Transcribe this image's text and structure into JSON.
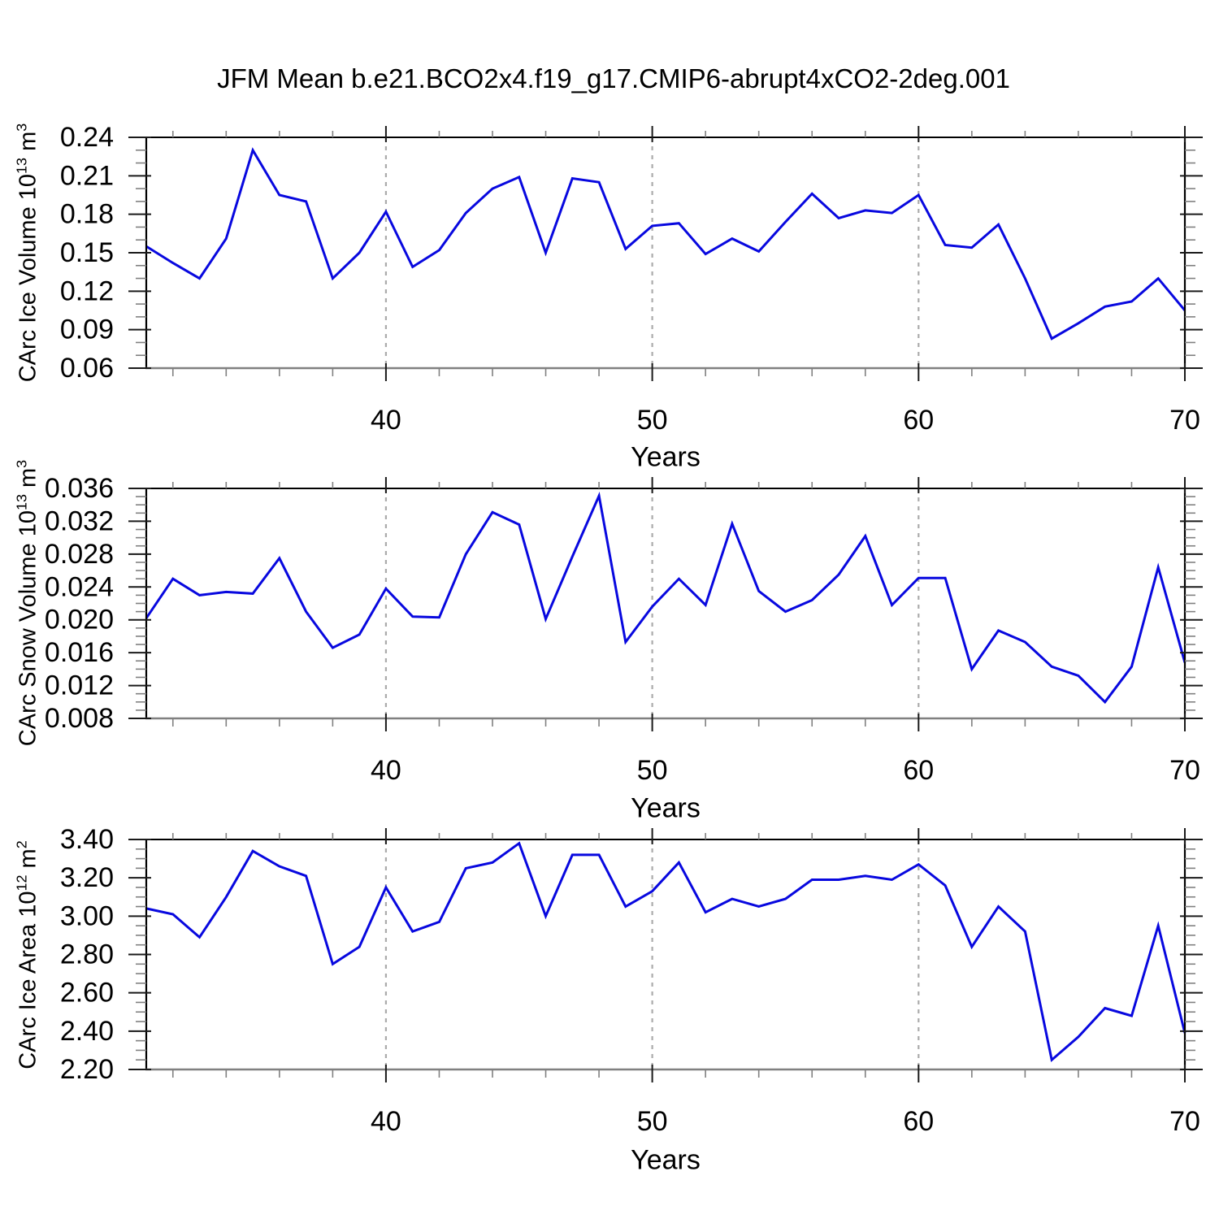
{
  "title": "JFM Mean b.e21.BCO2x4.f19_g17.CMIP6-abrupt4xCO2-2deg.001",
  "style": {
    "line_color": "#0808df",
    "grid_color": "#ababab",
    "frame_color": "#000000",
    "bottom_axis_color": "#808080",
    "major_tick_color": "#1a1a1a",
    "minor_tick_color": "#808080"
  },
  "chart_data": [
    {
      "type": "line",
      "ylabel": "CArc Ice Volume 10^13 m^3",
      "ylabel_parts": {
        "prefix": "CArc Ice Volume 10",
        "exp": "13",
        "unit": " m",
        "unit_exp": "3"
      },
      "xlabel": "Years",
      "xlim": [
        31,
        70
      ],
      "ylim": [
        0.06,
        0.24
      ],
      "grid": "x-dashed",
      "legend": "none",
      "x": [
        31,
        32,
        33,
        34,
        35,
        36,
        37,
        38,
        39,
        40,
        41,
        42,
        43,
        44,
        45,
        46,
        47,
        48,
        49,
        50,
        51,
        52,
        53,
        54,
        55,
        56,
        57,
        58,
        59,
        60,
        61,
        62,
        63,
        64,
        65,
        66,
        67,
        68,
        69,
        70
      ],
      "values": [
        0.155,
        0.142,
        0.13,
        0.161,
        0.23,
        0.195,
        0.19,
        0.13,
        0.15,
        0.182,
        0.139,
        0.152,
        0.181,
        0.2,
        0.209,
        0.15,
        0.208,
        0.205,
        0.153,
        0.171,
        0.173,
        0.149,
        0.161,
        0.151,
        0.174,
        0.196,
        0.177,
        0.183,
        0.181,
        0.195,
        0.156,
        0.154,
        0.172,
        0.13,
        0.083,
        0.095,
        0.108,
        0.112,
        0.13,
        0.105
      ],
      "yticks": {
        "values": [
          0.06,
          0.09,
          0.12,
          0.15,
          0.18,
          0.21,
          0.24
        ],
        "labels": [
          "0.06",
          "0.09",
          "0.12",
          "0.15",
          "0.18",
          "0.21",
          "0.24"
        ],
        "minor_step": 0.01
      },
      "xticks": {
        "values": [
          40,
          50,
          60,
          70
        ],
        "labels": [
          "40",
          "50",
          "60",
          "70"
        ],
        "minor_step": 2,
        "grid_values": [
          40,
          50,
          60
        ]
      }
    },
    {
      "type": "line",
      "ylabel": "CArc Snow Volume 10^13 m^3",
      "ylabel_parts": {
        "prefix": "CArc Snow Volume 10",
        "exp": "13",
        "unit": " m",
        "unit_exp": "3"
      },
      "xlabel": "Years",
      "xlim": [
        31,
        70
      ],
      "ylim": [
        0.008,
        0.036
      ],
      "grid": "x-dashed",
      "legend": "none",
      "x": [
        31,
        32,
        33,
        34,
        35,
        36,
        37,
        38,
        39,
        40,
        41,
        42,
        43,
        44,
        45,
        46,
        47,
        48,
        49,
        50,
        51,
        52,
        53,
        54,
        55,
        56,
        57,
        58,
        59,
        60,
        61,
        62,
        63,
        64,
        65,
        66,
        67,
        68,
        69,
        70
      ],
      "values": [
        0.0202,
        0.025,
        0.023,
        0.0234,
        0.0232,
        0.0275,
        0.021,
        0.0166,
        0.0182,
        0.0238,
        0.0204,
        0.0203,
        0.028,
        0.0331,
        0.0316,
        0.0201,
        0.0277,
        0.0351,
        0.0173,
        0.0216,
        0.025,
        0.0218,
        0.0317,
        0.0235,
        0.021,
        0.0224,
        0.0255,
        0.0302,
        0.0218,
        0.0251,
        0.0251,
        0.014,
        0.0187,
        0.0173,
        0.0143,
        0.0132,
        0.01,
        0.0143,
        0.0264,
        0.0148
      ],
      "yticks": {
        "values": [
          0.008,
          0.012,
          0.016,
          0.02,
          0.024,
          0.028,
          0.032,
          0.036
        ],
        "labels": [
          "0.008",
          "0.012",
          "0.016",
          "0.020",
          "0.024",
          "0.028",
          "0.032",
          "0.036"
        ],
        "minor_step": 0.001
      },
      "xticks": {
        "values": [
          40,
          50,
          60,
          70
        ],
        "labels": [
          "40",
          "50",
          "60",
          "70"
        ],
        "minor_step": 2,
        "grid_values": [
          40,
          50,
          60
        ]
      }
    },
    {
      "type": "line",
      "ylabel": "CArc Ice Area 10^12 m^2",
      "ylabel_parts": {
        "prefix": "CArc Ice Area 10",
        "exp": "12",
        "unit": " m",
        "unit_exp": "2"
      },
      "xlabel": "Years",
      "xlim": [
        31,
        70
      ],
      "ylim": [
        2.2,
        3.4
      ],
      "grid": "x-dashed",
      "legend": "none",
      "x": [
        31,
        32,
        33,
        34,
        35,
        36,
        37,
        38,
        39,
        40,
        41,
        42,
        43,
        44,
        45,
        46,
        47,
        48,
        49,
        50,
        51,
        52,
        53,
        54,
        55,
        56,
        57,
        58,
        59,
        60,
        61,
        62,
        63,
        64,
        65,
        66,
        67,
        68,
        69,
        70
      ],
      "values": [
        3.04,
        3.01,
        2.89,
        3.1,
        3.34,
        3.26,
        3.21,
        2.75,
        2.84,
        3.15,
        2.92,
        2.97,
        3.25,
        3.28,
        3.38,
        3.0,
        3.32,
        3.32,
        3.05,
        3.13,
        3.28,
        3.02,
        3.09,
        3.05,
        3.09,
        3.19,
        3.19,
        3.21,
        3.19,
        3.27,
        3.16,
        2.84,
        3.05,
        2.92,
        2.25,
        2.37,
        2.52,
        2.48,
        2.95,
        2.39
      ],
      "yticks": {
        "values": [
          2.2,
          2.4,
          2.6,
          2.8,
          3.0,
          3.2,
          3.4
        ],
        "labels": [
          "2.20",
          "2.40",
          "2.60",
          "2.80",
          "3.00",
          "3.20",
          "3.40"
        ],
        "minor_step": 0.05
      },
      "xticks": {
        "values": [
          40,
          50,
          60,
          70
        ],
        "labels": [
          "40",
          "50",
          "60",
          "70"
        ],
        "minor_step": 2,
        "grid_values": [
          40,
          50,
          60
        ]
      }
    }
  ]
}
